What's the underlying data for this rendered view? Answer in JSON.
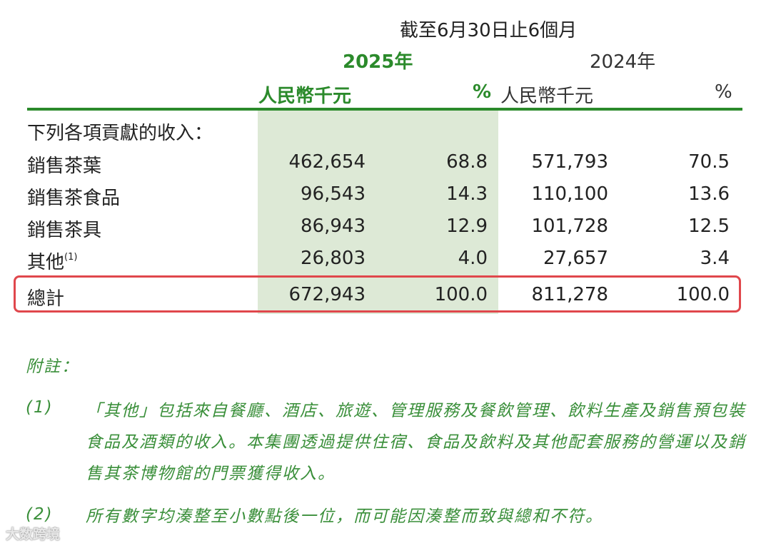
{
  "header": {
    "period": "截至6月30日止6個月",
    "year_current": "2025年",
    "year_prior": "2024年",
    "col_current_amount": "人民幣千元",
    "col_current_pct": "%",
    "col_prior_amount": "人民幣千元",
    "col_prior_pct": "%"
  },
  "table": {
    "section_label": "下列各項貢獻的收入：",
    "rows": [
      {
        "label": "銷售茶葉",
        "sup": "",
        "amt2025": "462,654",
        "pct2025": "68.8",
        "amt2024": "571,793",
        "pct2024": "70.5"
      },
      {
        "label": "銷售茶食品",
        "sup": "",
        "amt2025": "96,543",
        "pct2025": "14.3",
        "amt2024": "110,100",
        "pct2024": "13.6"
      },
      {
        "label": "銷售茶具",
        "sup": "",
        "amt2025": "86,943",
        "pct2025": "12.9",
        "amt2024": "101,728",
        "pct2024": "12.5"
      },
      {
        "label": "其他",
        "sup": "(1)",
        "amt2025": "26,803",
        "pct2025": "4.0",
        "amt2024": "27,657",
        "pct2024": "3.4"
      }
    ],
    "total": {
      "label": "總計",
      "amt2025": "672,943",
      "pct2025": "100.0",
      "amt2024": "811,278",
      "pct2024": "100.0"
    }
  },
  "notes": {
    "title": "附註：",
    "n1_num": "(1)",
    "n1_text": "「其他」包括來自餐廳、酒店、旅遊、管理服務及餐飲管理、飲料生產及銷售預包裝食品及酒類的收入。本集團透過提供住宿、食品及飲料及其他配套服務的營運以及銷售其茶博物館的門票獲得收入。",
    "n2_num": "(2)",
    "n2_text": "所有數字均湊整至小數點後一位，而可能因湊整而致與總和不符。"
  },
  "watermark": "大数跨境",
  "colors": {
    "accent_green": "#2b8a2b",
    "shade_green": "#dde9d6",
    "highlight_red": "#e0474c"
  }
}
